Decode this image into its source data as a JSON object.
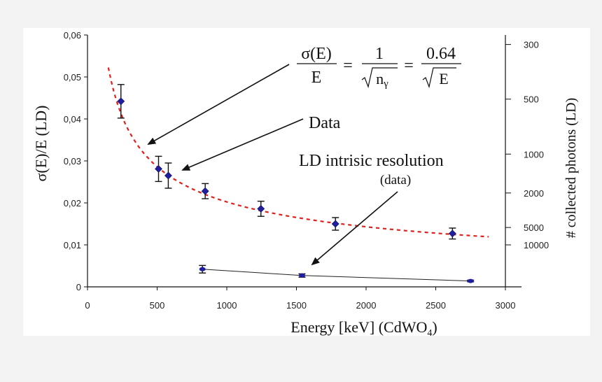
{
  "chart_data": {
    "type": "scatter",
    "xlabel": "Energy  [keV]  (CdWO",
    "xlabel_sub": "4",
    "xlabel_end": ")",
    "ylabel_left": "σ(E)/E  (LD)",
    "ylabel_right": "# collected photons (LD)",
    "xlim": [
      0,
      3000
    ],
    "ylim": [
      0,
      0.06
    ],
    "x_ticks": [
      0,
      500,
      1000,
      1500,
      2000,
      2500,
      3000
    ],
    "x_tick_labels": [
      "0",
      "500",
      "1000",
      "1500",
      "2000",
      "2500",
      "3000"
    ],
    "y_ticks": [
      0,
      0.01,
      0.02,
      0.03,
      0.04,
      0.05,
      0.06
    ],
    "y_tick_labels": [
      "0",
      "0,01",
      "0,02",
      "0,03",
      "0,04",
      "0,05",
      "0,06"
    ],
    "right_ticks": [
      300,
      500,
      1000,
      2000,
      5000,
      10000
    ],
    "right_tick_labels": [
      "300",
      "500",
      "1000",
      "2000",
      "5000",
      "10000"
    ],
    "series": [
      {
        "name": "Data",
        "x": [
          240,
          510,
          580,
          845,
          1245,
          1780,
          2620
        ],
        "y": [
          0.0442,
          0.0281,
          0.0265,
          0.0228,
          0.0186,
          0.015,
          0.0127
        ],
        "err": [
          0.004,
          0.003,
          0.003,
          0.0018,
          0.0018,
          0.0015,
          0.0013
        ],
        "color": "#1f1f9e"
      },
      {
        "name": "LD intrisic resolution (data)",
        "x": [
          825,
          1540,
          2750
        ],
        "y": [
          0.0042,
          0.0027,
          0.0014
        ],
        "err": [
          0.0009,
          0.0004,
          0.0002
        ],
        "color": "#1f1f9e"
      }
    ],
    "fit": {
      "formula": "0.64/sqrt(E)",
      "x_range": [
        150,
        2880
      ],
      "color": "#e0201c"
    },
    "annotations": {
      "formula_lhs_num": "σ(E)",
      "formula_lhs_den": "E",
      "formula_mid_num": "1",
      "formula_mid_den": "n",
      "formula_mid_sub": "γ",
      "formula_rhs_num": "0.64",
      "formula_rhs_den": "E",
      "eq": "=",
      "data_label": "Data",
      "ld_label_1": "LD intrisic resolution",
      "ld_label_2": "(data)"
    }
  }
}
